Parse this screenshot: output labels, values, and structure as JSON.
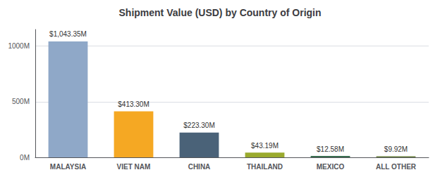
{
  "chart_data": {
    "type": "bar",
    "title": "Shipment Value (USD) by Country of Origin",
    "categories": [
      "MALAYSIA",
      "VIET NAM",
      "CHINA",
      "THAILAND",
      "MEXICO",
      "ALL OTHER"
    ],
    "values": [
      1043.35,
      413.3,
      223.3,
      43.19,
      12.58,
      9.92
    ],
    "value_labels": [
      "$1,043.35M",
      "$413.30M",
      "$223.30M",
      "$43.19M",
      "$12.58M",
      "$9.92M"
    ],
    "colors": [
      "#8fa8c8",
      "#f5a823",
      "#4a6278",
      "#9aaa2e",
      "#3a6e50",
      "#6b8040"
    ],
    "ylim": [
      0,
      1150
    ],
    "yticks": [
      {
        "value": 0,
        "label": "0M"
      },
      {
        "value": 500,
        "label": "500M"
      },
      {
        "value": 1000,
        "label": "1000M"
      }
    ],
    "grid": true
  }
}
